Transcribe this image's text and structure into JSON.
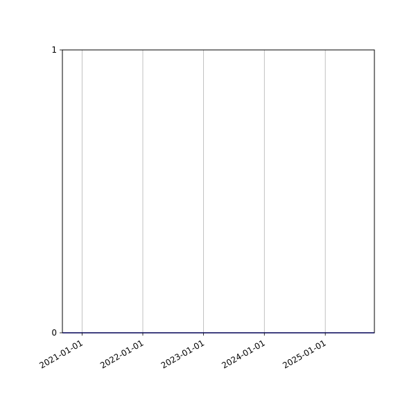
{
  "chart_data": {
    "type": "line",
    "title": "",
    "xlabel": "",
    "ylabel": "",
    "xlim": [
      "2020-09-05",
      "2025-10-23"
    ],
    "ylim": [
      0,
      1
    ],
    "x_ticks": [
      "2021-01-01",
      "2022-01-01",
      "2023-01-01",
      "2024-01-01",
      "2025-01-01"
    ],
    "y_ticks": [
      "0",
      "1"
    ],
    "grid": "x-only",
    "series": [
      {
        "x": [
          "2020-09-05",
          "2025-10-23"
        ],
        "y": [
          0,
          0
        ],
        "color": "#0000ff"
      }
    ]
  }
}
